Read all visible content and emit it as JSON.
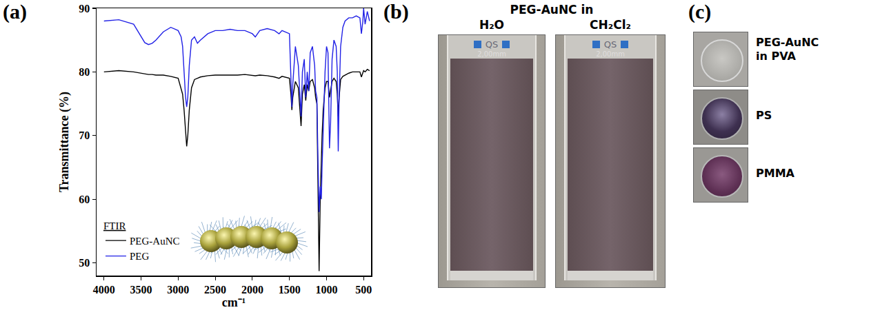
{
  "chart_data": {
    "type": "line",
    "panel": "(a)",
    "x_label": "cm⁻¹",
    "y_label": "Transmittance (%)",
    "legend_title": "FTIR",
    "legend": "lower left",
    "grid": false,
    "xlim": [
      4100,
      400
    ],
    "xticks": [
      4000,
      3500,
      3000,
      2500,
      2000,
      1500,
      1000,
      500
    ],
    "ylim": [
      48,
      90
    ],
    "yticks": [
      50,
      60,
      70,
      80,
      90
    ],
    "x": [
      4000,
      3800,
      3600,
      3500,
      3450,
      3400,
      3350,
      3300,
      3200,
      3100,
      3000,
      2960,
      2940,
      2920,
      2900,
      2885,
      2870,
      2850,
      2820,
      2780,
      2740,
      2700,
      2600,
      2500,
      2400,
      2300,
      2200,
      2100,
      2000,
      1960,
      1900,
      1800,
      1700,
      1640,
      1600,
      1500,
      1480,
      1467,
      1455,
      1420,
      1380,
      1360,
      1343,
      1325,
      1300,
      1280,
      1260,
      1240,
      1220,
      1190,
      1160,
      1147,
      1130,
      1115,
      1100,
      1085,
      1070,
      1060,
      1045,
      1020,
      1000,
      980,
      960,
      945,
      925,
      900,
      870,
      855,
      842,
      830,
      810,
      780,
      750,
      700,
      650,
      600,
      550,
      530,
      510,
      500,
      480,
      450,
      420
    ],
    "series": [
      {
        "name": "PEG-AuNC",
        "color": "#000000",
        "values": [
          80,
          80.2,
          80,
          79.8,
          79.7,
          79.6,
          79.6,
          79.5,
          79.5,
          79.3,
          79,
          77.5,
          76.5,
          74,
          70,
          68.3,
          70,
          74,
          77.5,
          78.8,
          79,
          79.2,
          79.4,
          79.5,
          79.5,
          79.5,
          79.5,
          79.6,
          79.5,
          79.4,
          79.5,
          79.4,
          79.2,
          79,
          79.3,
          79,
          76.5,
          74,
          76,
          78.5,
          77.5,
          74,
          71.5,
          76.5,
          78,
          75.5,
          78,
          77,
          78.5,
          78.8,
          77.5,
          76,
          75,
          62,
          48.7,
          60,
          67,
          70,
          74,
          77.5,
          78.5,
          78.5,
          76,
          77,
          78.5,
          79,
          78.5,
          76.5,
          73,
          76,
          78.8,
          79.3,
          79.5,
          79.8,
          80,
          80,
          80,
          79.2,
          79.8,
          80.2,
          80,
          80.4,
          80.2
        ]
      },
      {
        "name": "PEG",
        "color": "#2121e6",
        "values": [
          88,
          88.2,
          87.5,
          85.5,
          84.6,
          84.3,
          84.5,
          85,
          86.3,
          87,
          86.5,
          85.5,
          84,
          80,
          76,
          74.5,
          76,
          81,
          85,
          85.5,
          84.5,
          85,
          86,
          86.5,
          86.5,
          86.7,
          86.5,
          86.5,
          86,
          85.5,
          86.5,
          86.8,
          86.5,
          86,
          86.5,
          86,
          80,
          74.5,
          78,
          84,
          81,
          76,
          73,
          80,
          82,
          76,
          80,
          77,
          83,
          84,
          81,
          77,
          76,
          66,
          58,
          62,
          60,
          65,
          70,
          80,
          84,
          83,
          68,
          72,
          82,
          85,
          84,
          80,
          67.5,
          76,
          84,
          87,
          88,
          88.5,
          88.5,
          88.8,
          88.5,
          86,
          88,
          90,
          87.5,
          89.5,
          88
        ]
      }
    ]
  },
  "panel_b": {
    "label": "(b)",
    "title": "PEG-AuNC in",
    "samples": [
      {
        "solvent": "H₂O",
        "cuvette_marking": [
          "QS",
          "2,00mm"
        ]
      },
      {
        "solvent": "CH₂Cl₂",
        "cuvette_marking": [
          "QS",
          "2,00mm"
        ]
      }
    ]
  },
  "panel_c": {
    "label": "(c)",
    "samples": [
      "PEG-AuNC in PVA",
      "PS",
      "PMMA"
    ]
  }
}
